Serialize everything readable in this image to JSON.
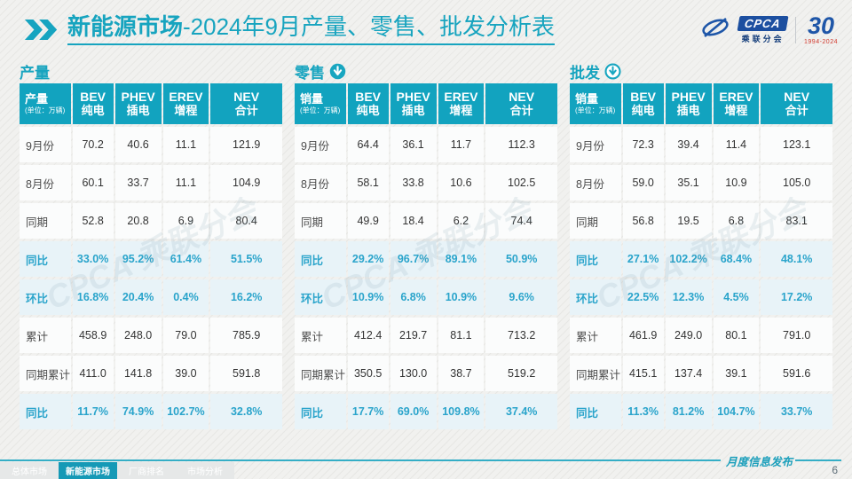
{
  "accent": "#17a4bf",
  "header": {
    "title_bold": "新能源市场",
    "title_rest": "-2024年9月产量、零售、批发分析表",
    "logos": {
      "cpca_badge": "CPCA",
      "cpca_sub": "乘联分会",
      "anniv_number": "30",
      "anniv_years": "1994-2024"
    }
  },
  "watermark": "CPCA 乘联分会",
  "sections": [
    {
      "label": "产量",
      "table": {
        "unit_label": "产量",
        "unit_sub": "(单位：万辆)",
        "columns": [
          {
            "en": "BEV",
            "zh": "纯电"
          },
          {
            "en": "PHEV",
            "zh": "插电"
          },
          {
            "en": "EREV",
            "zh": "增程"
          },
          {
            "en": "NEV",
            "zh": "合计"
          }
        ],
        "rows": [
          {
            "label": "9月份",
            "values": [
              "70.2",
              "40.6",
              "11.1",
              "121.9"
            ],
            "highlight": false
          },
          {
            "label": "8月份",
            "values": [
              "60.1",
              "33.7",
              "11.1",
              "104.9"
            ],
            "highlight": false
          },
          {
            "label": "同期",
            "values": [
              "52.8",
              "20.8",
              "6.9",
              "80.4"
            ],
            "highlight": false
          },
          {
            "label": "同比",
            "values": [
              "33.0%",
              "95.2%",
              "61.4%",
              "51.5%"
            ],
            "highlight": true
          },
          {
            "label": "环比",
            "values": [
              "16.8%",
              "20.4%",
              "0.4%",
              "16.2%"
            ],
            "highlight": true
          },
          {
            "label": "累计",
            "values": [
              "458.9",
              "248.0",
              "79.0",
              "785.9"
            ],
            "highlight": false
          },
          {
            "label": "同期累计",
            "values": [
              "411.0",
              "141.8",
              "39.0",
              "591.8"
            ],
            "highlight": false
          },
          {
            "label": "同比",
            "values": [
              "11.7%",
              "74.9%",
              "102.7%",
              "32.8%"
            ],
            "highlight": true
          }
        ]
      }
    },
    {
      "label": "零售",
      "table": {
        "unit_label": "销量",
        "unit_sub": "(单位：万辆)",
        "columns": [
          {
            "en": "BEV",
            "zh": "纯电"
          },
          {
            "en": "PHEV",
            "zh": "插电"
          },
          {
            "en": "EREV",
            "zh": "增程"
          },
          {
            "en": "NEV",
            "zh": "合计"
          }
        ],
        "rows": [
          {
            "label": "9月份",
            "values": [
              "64.4",
              "36.1",
              "11.7",
              "112.3"
            ],
            "highlight": false
          },
          {
            "label": "8月份",
            "values": [
              "58.1",
              "33.8",
              "10.6",
              "102.5"
            ],
            "highlight": false
          },
          {
            "label": "同期",
            "values": [
              "49.9",
              "18.4",
              "6.2",
              "74.4"
            ],
            "highlight": false
          },
          {
            "label": "同比",
            "values": [
              "29.2%",
              "96.7%",
              "89.1%",
              "50.9%"
            ],
            "highlight": true
          },
          {
            "label": "环比",
            "values": [
              "10.9%",
              "6.8%",
              "10.9%",
              "9.6%"
            ],
            "highlight": true
          },
          {
            "label": "累计",
            "values": [
              "412.4",
              "219.7",
              "81.1",
              "713.2"
            ],
            "highlight": false
          },
          {
            "label": "同期累计",
            "values": [
              "350.5",
              "130.0",
              "38.7",
              "519.2"
            ],
            "highlight": false
          },
          {
            "label": "同比",
            "values": [
              "17.7%",
              "69.0%",
              "109.8%",
              "37.4%"
            ],
            "highlight": true
          }
        ]
      }
    },
    {
      "label": "批发",
      "table": {
        "unit_label": "销量",
        "unit_sub": "(单位：万辆)",
        "columns": [
          {
            "en": "BEV",
            "zh": "纯电"
          },
          {
            "en": "PHEV",
            "zh": "插电"
          },
          {
            "en": "EREV",
            "zh": "增程"
          },
          {
            "en": "NEV",
            "zh": "合计"
          }
        ],
        "rows": [
          {
            "label": "9月份",
            "values": [
              "72.3",
              "39.4",
              "11.4",
              "123.1"
            ],
            "highlight": false
          },
          {
            "label": "8月份",
            "values": [
              "59.0",
              "35.1",
              "10.9",
              "105.0"
            ],
            "highlight": false
          },
          {
            "label": "同期",
            "values": [
              "56.8",
              "19.5",
              "6.8",
              "83.1"
            ],
            "highlight": false
          },
          {
            "label": "同比",
            "values": [
              "27.1%",
              "102.2%",
              "68.4%",
              "48.1%"
            ],
            "highlight": true
          },
          {
            "label": "环比",
            "values": [
              "22.5%",
              "12.3%",
              "4.5%",
              "17.2%"
            ],
            "highlight": true
          },
          {
            "label": "累计",
            "values": [
              "461.9",
              "249.0",
              "80.1",
              "791.0"
            ],
            "highlight": false
          },
          {
            "label": "同期累计",
            "values": [
              "415.1",
              "137.4",
              "39.1",
              "591.6"
            ],
            "highlight": false
          },
          {
            "label": "同比",
            "values": [
              "11.3%",
              "81.2%",
              "104.7%",
              "33.7%"
            ],
            "highlight": true
          }
        ]
      }
    }
  ],
  "footer": {
    "tabs": [
      {
        "label": "总体市场",
        "active": false
      },
      {
        "label": "新能源市场",
        "active": true
      },
      {
        "label": "厂商排名",
        "active": false
      },
      {
        "label": "市场分析",
        "active": false
      }
    ],
    "caption": "月度信息发布",
    "page": "6"
  },
  "chart_data": [
    {
      "type": "table",
      "title": "产量（单位：万辆）",
      "columns": [
        "",
        "BEV纯电",
        "PHEV插电",
        "EREV增程",
        "NEV合计"
      ],
      "rows": [
        [
          "9月份",
          70.2,
          40.6,
          11.1,
          121.9
        ],
        [
          "8月份",
          60.1,
          33.7,
          11.1,
          104.9
        ],
        [
          "同期",
          52.8,
          20.8,
          6.9,
          80.4
        ],
        [
          "同比",
          "33.0%",
          "95.2%",
          "61.4%",
          "51.5%"
        ],
        [
          "环比",
          "16.8%",
          "20.4%",
          "0.4%",
          "16.2%"
        ],
        [
          "累计",
          458.9,
          248.0,
          79.0,
          785.9
        ],
        [
          "同期累计",
          411.0,
          141.8,
          39.0,
          591.8
        ],
        [
          "同比",
          "11.7%",
          "74.9%",
          "102.7%",
          "32.8%"
        ]
      ]
    },
    {
      "type": "table",
      "title": "零售销量（单位：万辆）",
      "columns": [
        "",
        "BEV纯电",
        "PHEV插电",
        "EREV增程",
        "NEV合计"
      ],
      "rows": [
        [
          "9月份",
          64.4,
          36.1,
          11.7,
          112.3
        ],
        [
          "8月份",
          58.1,
          33.8,
          10.6,
          102.5
        ],
        [
          "同期",
          49.9,
          18.4,
          6.2,
          74.4
        ],
        [
          "同比",
          "29.2%",
          "96.7%",
          "89.1%",
          "50.9%"
        ],
        [
          "环比",
          "10.9%",
          "6.8%",
          "10.9%",
          "9.6%"
        ],
        [
          "累计",
          412.4,
          219.7,
          81.1,
          713.2
        ],
        [
          "同期累计",
          350.5,
          130.0,
          38.7,
          519.2
        ],
        [
          "同比",
          "17.7%",
          "69.0%",
          "109.8%",
          "37.4%"
        ]
      ]
    },
    {
      "type": "table",
      "title": "批发销量（单位：万辆）",
      "columns": [
        "",
        "BEV纯电",
        "PHEV插电",
        "EREV增程",
        "NEV合计"
      ],
      "rows": [
        [
          "9月份",
          72.3,
          39.4,
          11.4,
          123.1
        ],
        [
          "8月份",
          59.0,
          35.1,
          10.9,
          105.0
        ],
        [
          "同期",
          56.8,
          19.5,
          6.8,
          83.1
        ],
        [
          "同比",
          "27.1%",
          "102.2%",
          "68.4%",
          "48.1%"
        ],
        [
          "环比",
          "22.5%",
          "12.3%",
          "4.5%",
          "17.2%"
        ],
        [
          "累计",
          461.9,
          249.0,
          80.1,
          791.0
        ],
        [
          "同期累计",
          415.1,
          137.4,
          39.1,
          591.6
        ],
        [
          "同比",
          "11.3%",
          "81.2%",
          "104.7%",
          "33.7%"
        ]
      ]
    }
  ]
}
